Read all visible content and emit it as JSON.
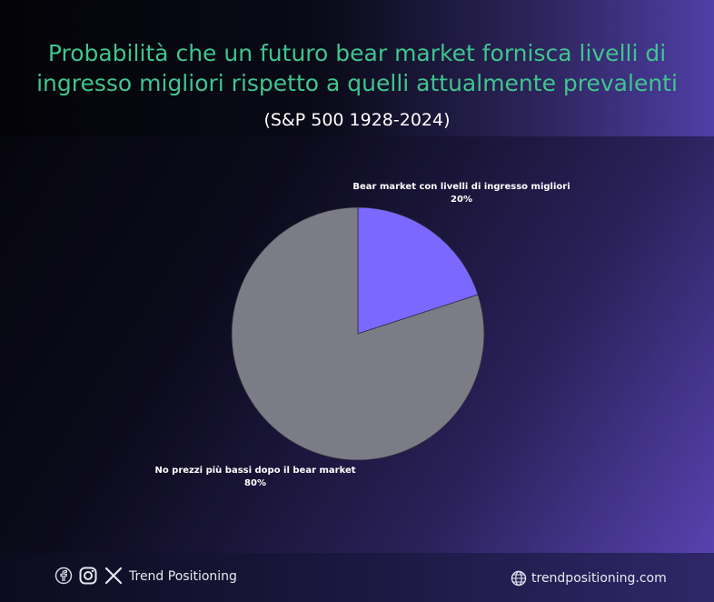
{
  "header": {
    "title_line1": "Probabilità che un futuro bear market fornisca livelli di",
    "title_line2": "ingresso migliori rispetto a quelli attualmente prevalenti",
    "subtitle": "(S&P 500 1928-2024)"
  },
  "chart_data": {
    "type": "pie",
    "title": "Probabilità che un futuro bear market fornisca livelli di ingresso migliori rispetto a quelli attualmente prevalenti",
    "subtitle": "(S&P 500 1928-2024)",
    "slices": [
      {
        "label": "Bear market con livelli di ingresso migliori",
        "value": 20,
        "value_label": "20%",
        "color": "#7b68ff"
      },
      {
        "label": "No prezzi più bassi dopo il bear market",
        "value": 80,
        "value_label": "80%",
        "color": "#7c7c86"
      }
    ]
  },
  "footer": {
    "icons": [
      "facebook-icon",
      "instagram-icon",
      "x-icon",
      "globe-icon"
    ],
    "brand": "Trend Positioning",
    "website": "trendpositioning.com"
  }
}
